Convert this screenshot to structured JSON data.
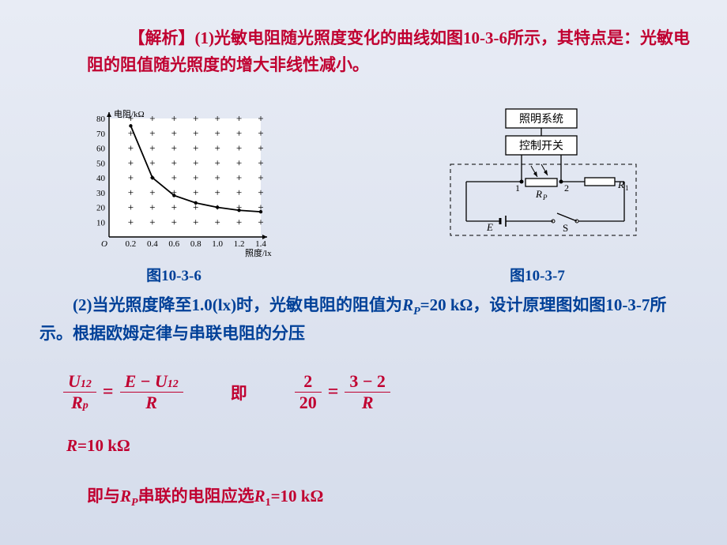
{
  "analysis": {
    "label": "【解析】",
    "text": "(1)光敏电阻随光照度变化的曲线如图10-3-6所示，其特点是：光敏电阻的阻值随光照度的增大非线性减小。"
  },
  "chart": {
    "type": "line",
    "y_label": "电阻/kΩ",
    "x_label": "照度/lx",
    "x_values": [
      0.2,
      0.4,
      0.6,
      0.8,
      1.0,
      1.2,
      1.4
    ],
    "y_values": [
      75,
      40,
      28,
      23,
      20,
      18,
      17
    ],
    "xlim": [
      0,
      1.4
    ],
    "ylim": [
      0,
      80
    ],
    "x_ticks": [
      "0.2",
      "0.4",
      "0.6",
      "0.8",
      "1.0",
      "1.2",
      "1.4"
    ],
    "y_ticks": [
      "10",
      "20",
      "30",
      "40",
      "50",
      "60",
      "70",
      "80"
    ],
    "axis_color": "#000000",
    "grid_color": "#000000",
    "curve_color": "#000000",
    "marker": "+",
    "background_color": "#ffffff",
    "caption": "图10-3-6",
    "label_fontsize": 11,
    "origin_label": "O"
  },
  "circuit": {
    "type": "diagram",
    "boxes": [
      "照明系统",
      "控制开关"
    ],
    "nodes": [
      "1",
      "2"
    ],
    "components": {
      "Rp": "R",
      "Rp_sub": "P",
      "R1": "R",
      "R1_sub": "1",
      "E": "E",
      "S": "S"
    },
    "line_color": "#000000",
    "dash_color": "#000000",
    "fill_color": "#ffffff",
    "caption": "图10-3-7",
    "fontsize": 14
  },
  "part2": {
    "prefix": "(2)当光照度降至1.0(lx)时，光敏电阻的阻值为",
    "rp": "R",
    "rp_sub": "P",
    "eq": "=20 kΩ",
    "mid": "，设计原理图如图10-3-7所示。根据欧姆定律与串联电阻的分压"
  },
  "equations": {
    "left": {
      "num_U": "U",
      "num_sub": "12",
      "den_R": "R",
      "den_sub": "p",
      "rhs_num_a": "E",
      "rhs_num_m": " − ",
      "rhs_num_b": "U",
      "rhs_num_bsub": "12",
      "rhs_den": "R"
    },
    "connector": "即",
    "right": {
      "num": "2",
      "den": "20",
      "rnum": "3 − 2",
      "rden": "R"
    },
    "eq_sign": "="
  },
  "result_r": {
    "R": "R",
    "val": "=10 kΩ"
  },
  "final": {
    "pre": "即与",
    "R": "R",
    "Rsub": "P",
    "mid": "串联的电阻应选",
    "R1": "R",
    "R1sub": "1",
    "val": "=10 kΩ"
  }
}
